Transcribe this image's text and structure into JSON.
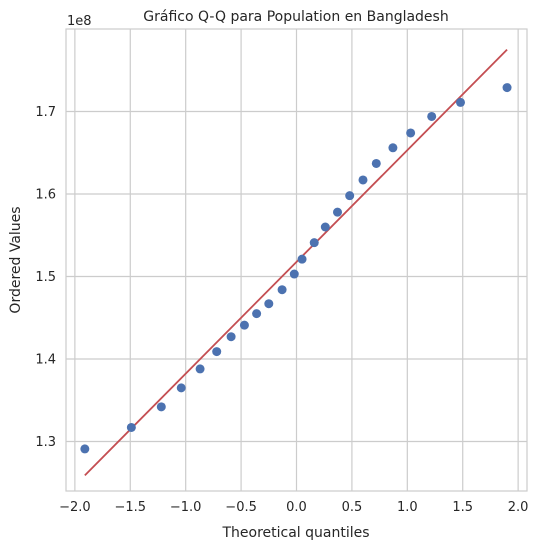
{
  "chart_data": {
    "type": "scatter",
    "title": "Gráfico Q-Q para Population en Bangladesh",
    "xlabel": "Theoretical quantiles",
    "ylabel": "Ordered Values",
    "offset_label": "1e8",
    "xlim": [
      -2.08,
      2.08
    ],
    "ylim": [
      1.24,
      1.8
    ],
    "x_ticks": [
      -2.0,
      -1.5,
      -1.0,
      -0.5,
      0.0,
      0.5,
      1.0,
      1.5,
      2.0
    ],
    "x_tick_labels": [
      "−2.0",
      "−1.5",
      "−1.0",
      "−0.5",
      "0.0",
      "0.5",
      "1.0",
      "1.5",
      "2.0"
    ],
    "y_ticks": [
      1.3,
      1.4,
      1.5,
      1.6,
      1.7
    ],
    "y_tick_labels": [
      "1.3",
      "1.4",
      "1.5",
      "1.6",
      "1.7"
    ],
    "grid": true,
    "series": [
      {
        "type": "scatter",
        "color": "#4c72b0",
        "points": [
          [
            -1.91,
            1.291
          ],
          [
            -1.49,
            1.317
          ],
          [
            -1.22,
            1.342
          ],
          [
            -1.04,
            1.365
          ],
          [
            -0.87,
            1.388
          ],
          [
            -0.72,
            1.409
          ],
          [
            -0.59,
            1.427
          ],
          [
            -0.47,
            1.441
          ],
          [
            -0.36,
            1.455
          ],
          [
            -0.25,
            1.467
          ],
          [
            -0.13,
            1.484
          ],
          [
            -0.02,
            1.503
          ],
          [
            0.05,
            1.521
          ],
          [
            0.16,
            1.541
          ],
          [
            0.26,
            1.56
          ],
          [
            0.37,
            1.578
          ],
          [
            0.48,
            1.598
          ],
          [
            0.6,
            1.617
          ],
          [
            0.72,
            1.637
          ],
          [
            0.87,
            1.656
          ],
          [
            1.03,
            1.674
          ],
          [
            1.22,
            1.694
          ],
          [
            1.48,
            1.711
          ],
          [
            1.9,
            1.729
          ]
        ]
      },
      {
        "type": "line",
        "color": "#c44e52",
        "points": [
          [
            -1.91,
            1.259
          ],
          [
            1.9,
            1.775
          ]
        ]
      }
    ]
  }
}
